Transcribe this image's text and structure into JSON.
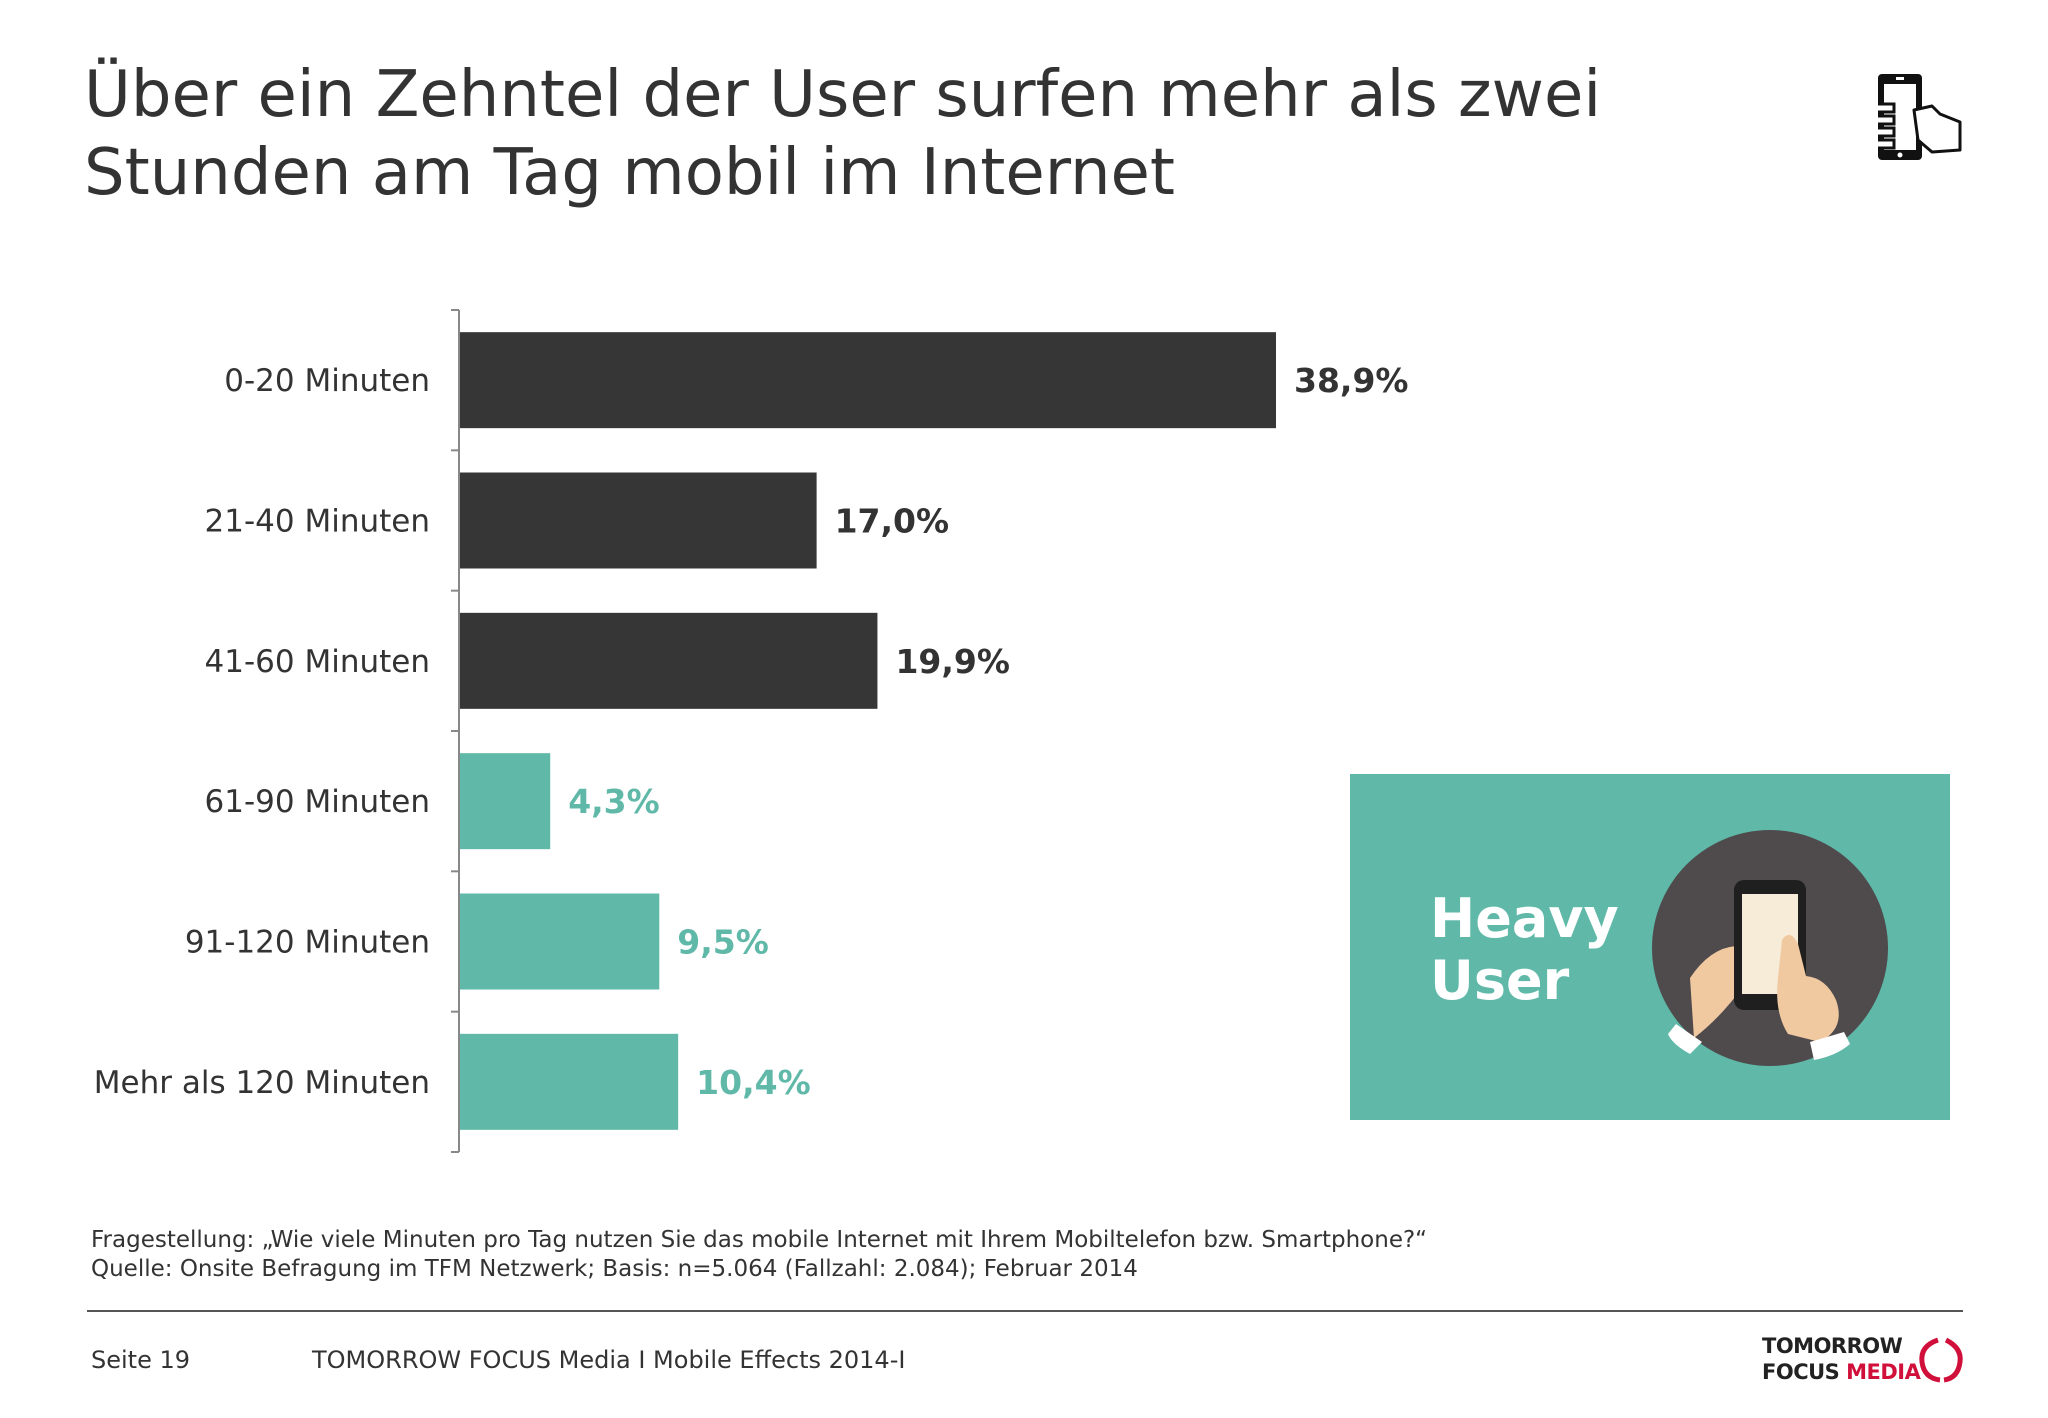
{
  "title": {
    "line1": "Über ein Zehntel der User surfen mehr als zwei",
    "line2": "Stunden am Tag mobil im Internet"
  },
  "icons": {
    "corner": "hand-holding-smartphone-icon",
    "illustration": "hands-using-smartphone-icon",
    "logo_mark": "logo-mark-icon"
  },
  "colors": {
    "dark_bar": "#363636",
    "teal_bar": "#5fb8a8",
    "dark_label": "#333333",
    "teal_label": "#5fb8a8",
    "logo_accent": "#d0103a"
  },
  "chart_data": {
    "type": "bar",
    "orientation": "horizontal",
    "categories": [
      "0-20 Minuten",
      "21-40 Minuten",
      "41-60 Minuten",
      "61-90 Minuten",
      "91-120 Minuten",
      "Mehr als 120 Minuten"
    ],
    "values": [
      38.9,
      17.0,
      19.9,
      4.3,
      9.5,
      10.4
    ],
    "value_labels": [
      "38,9%",
      "17,0%",
      "19,9%",
      "4,3%",
      "9,5%",
      "10,4%"
    ],
    "highlighted": [
      false,
      false,
      false,
      true,
      true,
      true
    ],
    "unit": "%",
    "xlim": [
      0,
      100
    ],
    "grid": false,
    "legend": "none"
  },
  "callout": {
    "line1": "Heavy",
    "line2": "User"
  },
  "notes": {
    "question": "Fragestellung: „Wie viele Minuten pro Tag nutzen Sie das mobile Internet mit Ihrem Mobiltelefon bzw. Smartphone?“",
    "source": "Quelle: Onsite Befragung im TFM Netzwerk; Basis: n=5.064 (Fallzahl: 2.084); Februar 2014"
  },
  "footer": {
    "page": "Seite 19",
    "source": "TOMORROW FOCUS Media  I  Mobile Effects 2014-I"
  },
  "logo": {
    "line1": "TOMORROW",
    "focus": "FOCUS",
    "media": "MEDIA"
  }
}
